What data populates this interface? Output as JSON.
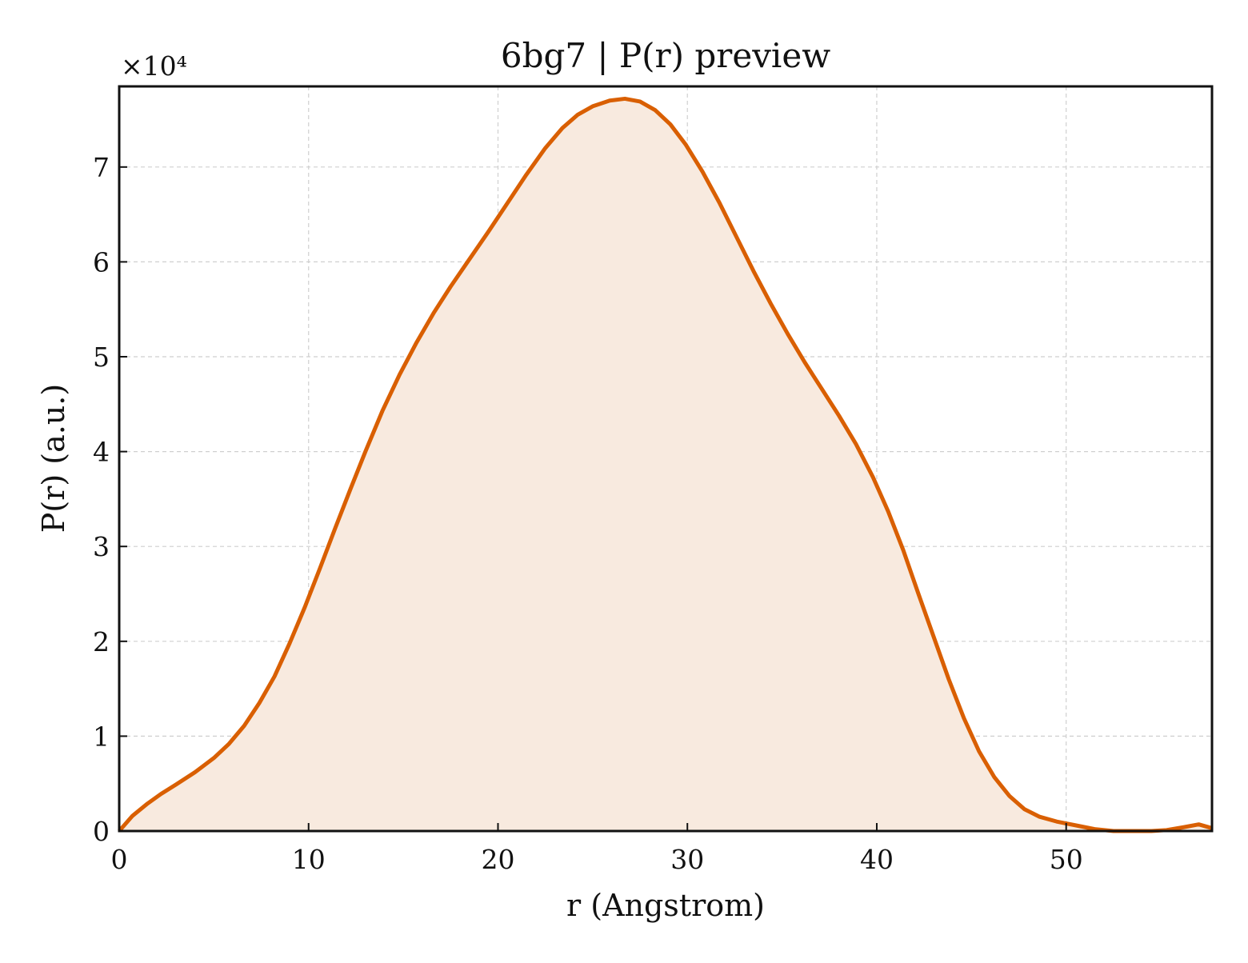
{
  "chart_data": {
    "type": "area",
    "title": "6bg7 | P(r) preview",
    "xlabel": "r (Angstrom)",
    "ylabel": "P(r) (a.u.)",
    "y_multiplier_label": "×10⁴",
    "xlim": [
      0,
      57.7
    ],
    "ylim": [
      0,
      78500
    ],
    "xticks": [
      0,
      10,
      20,
      30,
      40,
      50
    ],
    "xtick_labels": [
      "0",
      "10",
      "20",
      "30",
      "40",
      "50"
    ],
    "yticks": [
      0,
      10000,
      20000,
      30000,
      40000,
      50000,
      60000,
      70000
    ],
    "ytick_labels": [
      "0",
      "1",
      "2",
      "3",
      "4",
      "5",
      "6",
      "7"
    ],
    "grid": true,
    "line_color": "#d95f02",
    "fill_color": "#f8eadf",
    "series": [
      {
        "x": [
          0,
          0.7,
          1.5,
          2.2,
          3.0,
          4.0,
          5.0,
          5.8,
          6.6,
          7.4,
          8.2,
          9.0,
          9.8,
          10.6,
          11.4,
          12.2,
          13.0,
          13.9,
          14.8,
          15.7,
          16.6,
          17.5,
          18.5,
          19.5,
          20.5,
          21.5,
          22.5,
          23.4,
          24.2,
          25.0,
          25.9,
          26.7,
          27.5,
          28.3,
          29.1,
          29.9,
          30.8,
          31.7,
          32.6,
          33.5,
          34.4,
          35.3,
          36.2,
          37.1,
          38.0,
          38.9,
          39.8,
          40.6,
          41.4,
          42.2,
          43.0,
          43.8,
          44.6,
          45.4,
          46.2,
          47.0,
          47.8,
          48.6,
          49.5,
          50.5,
          51.5,
          52.5,
          53.5,
          54.5,
          55.3,
          56.2,
          57.0,
          57.7
        ],
        "values": [
          0,
          1600,
          2900,
          3900,
          4900,
          6200,
          7700,
          9200,
          11100,
          13500,
          16300,
          19800,
          23600,
          27700,
          31900,
          36000,
          40000,
          44300,
          48100,
          51500,
          54600,
          57400,
          60300,
          63200,
          66200,
          69200,
          72000,
          74100,
          75500,
          76400,
          77000,
          77200,
          76900,
          76000,
          74500,
          72400,
          69500,
          66200,
          62600,
          59000,
          55600,
          52400,
          49400,
          46600,
          43800,
          40800,
          37300,
          33700,
          29600,
          25000,
          20500,
          16000,
          11900,
          8400,
          5700,
          3700,
          2300,
          1500,
          1000,
          600,
          200,
          -300,
          -500,
          -200,
          100,
          400,
          700,
          300
        ]
      }
    ]
  }
}
